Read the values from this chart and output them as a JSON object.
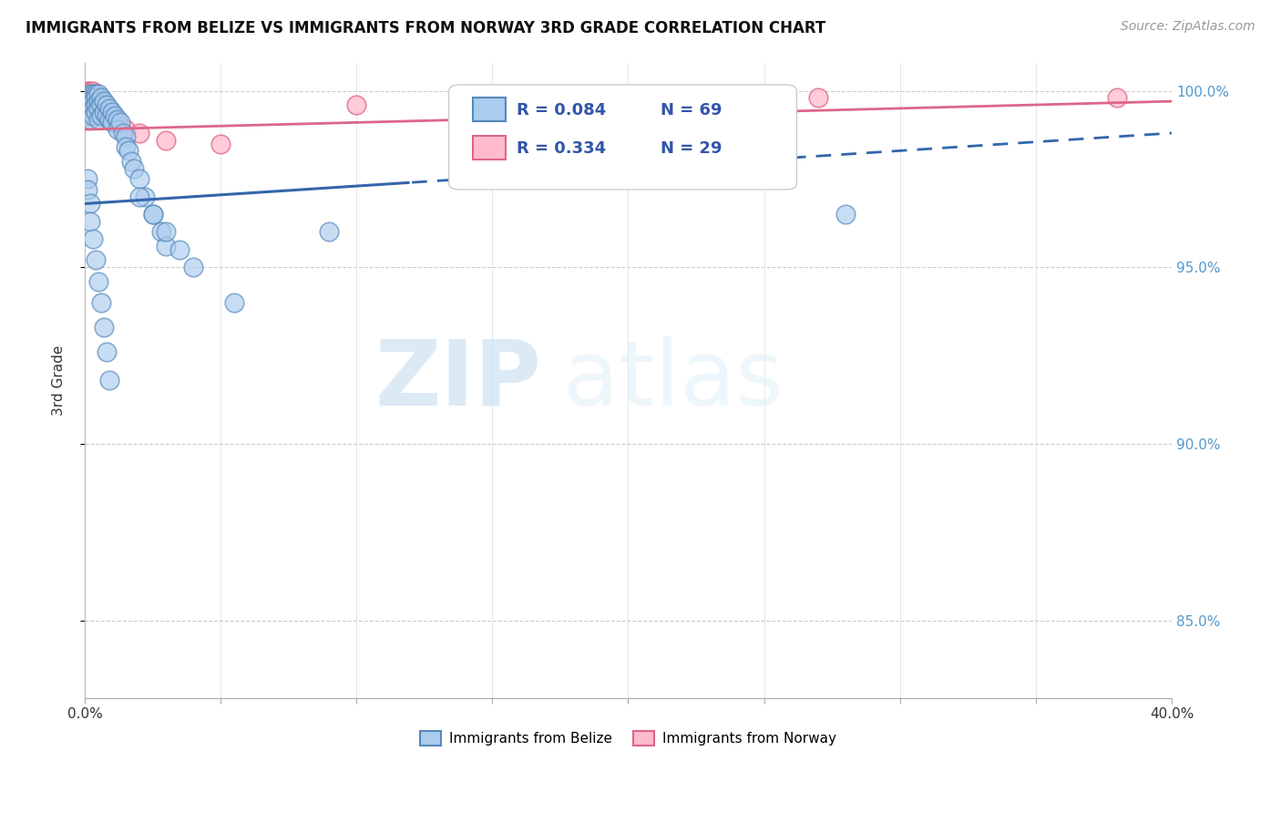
{
  "title": "IMMIGRANTS FROM BELIZE VS IMMIGRANTS FROM NORWAY 3RD GRADE CORRELATION CHART",
  "source": "Source: ZipAtlas.com",
  "ylabel": "3rd Grade",
  "xmin": 0.0,
  "xmax": 0.4,
  "ymin": 0.828,
  "ymax": 1.008,
  "yticks": [
    0.85,
    0.9,
    0.95,
    1.0
  ],
  "ytick_labels": [
    "85.0%",
    "90.0%",
    "95.0%",
    "100.0%"
  ],
  "xticks": [
    0.0,
    0.05,
    0.1,
    0.15,
    0.2,
    0.25,
    0.3,
    0.35,
    0.4
  ],
  "legend_R_belize": "R = 0.084",
  "legend_N_belize": "N = 69",
  "legend_R_norway": "R = 0.334",
  "legend_N_norway": "N = 29",
  "color_belize_fill": "#aaccee",
  "color_belize_edge": "#5588bb",
  "color_norway_fill": "#ffbbcc",
  "color_norway_edge": "#dd6688",
  "color_belize_line": "#3366aa",
  "color_norway_line": "#dd6688",
  "watermark_zip": "ZIP",
  "watermark_atlas": "atlas",
  "belize_x": [
    0.001,
    0.001,
    0.001,
    0.001,
    0.001,
    0.002,
    0.002,
    0.002,
    0.002,
    0.002,
    0.002,
    0.003,
    0.003,
    0.003,
    0.003,
    0.003,
    0.004,
    0.004,
    0.004,
    0.004,
    0.005,
    0.005,
    0.005,
    0.005,
    0.006,
    0.006,
    0.006,
    0.007,
    0.007,
    0.008,
    0.008,
    0.009,
    0.009,
    0.01,
    0.01,
    0.011,
    0.012,
    0.012,
    0.013,
    0.014,
    0.015,
    0.015,
    0.016,
    0.017,
    0.018,
    0.02,
    0.022,
    0.025,
    0.028,
    0.03,
    0.001,
    0.001,
    0.002,
    0.002,
    0.003,
    0.004,
    0.005,
    0.006,
    0.007,
    0.008,
    0.009,
    0.02,
    0.025,
    0.03,
    0.035,
    0.04,
    0.055,
    0.09,
    0.28
  ],
  "belize_y": [
    0.998,
    0.997,
    0.996,
    0.995,
    0.993,
    0.999,
    0.998,
    0.997,
    0.996,
    0.994,
    0.992,
    0.999,
    0.998,
    0.997,
    0.995,
    0.993,
    0.999,
    0.998,
    0.996,
    0.994,
    0.999,
    0.997,
    0.995,
    0.992,
    0.998,
    0.996,
    0.993,
    0.997,
    0.994,
    0.996,
    0.993,
    0.995,
    0.992,
    0.994,
    0.991,
    0.993,
    0.992,
    0.989,
    0.991,
    0.988,
    0.987,
    0.984,
    0.983,
    0.98,
    0.978,
    0.975,
    0.97,
    0.965,
    0.96,
    0.956,
    0.975,
    0.972,
    0.968,
    0.963,
    0.958,
    0.952,
    0.946,
    0.94,
    0.933,
    0.926,
    0.918,
    0.97,
    0.965,
    0.96,
    0.955,
    0.95,
    0.94,
    0.96,
    0.965
  ],
  "norway_x": [
    0.001,
    0.001,
    0.001,
    0.002,
    0.002,
    0.002,
    0.003,
    0.003,
    0.003,
    0.004,
    0.004,
    0.005,
    0.005,
    0.006,
    0.006,
    0.007,
    0.008,
    0.009,
    0.01,
    0.011,
    0.013,
    0.015,
    0.02,
    0.03,
    0.05,
    0.1,
    0.15,
    0.27,
    0.38
  ],
  "norway_y": [
    1.0,
    0.999,
    0.998,
    1.0,
    0.999,
    0.997,
    1.0,
    0.999,
    0.998,
    0.999,
    0.997,
    0.998,
    0.996,
    0.997,
    0.995,
    0.996,
    0.995,
    0.994,
    0.993,
    0.992,
    0.99,
    0.989,
    0.988,
    0.986,
    0.985,
    0.996,
    0.997,
    0.998,
    0.998
  ]
}
